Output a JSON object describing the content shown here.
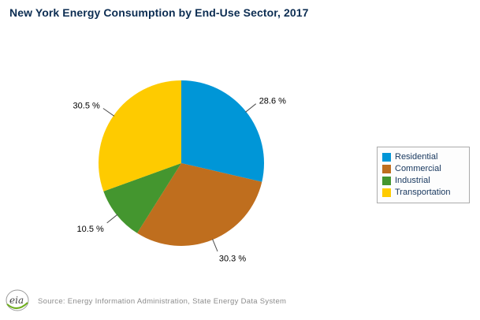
{
  "title": "New York Energy Consumption by End-Use Sector, 2017",
  "source": "Source: Energy Information Administration, State Energy Data System",
  "logo_text": "eia",
  "chart_data": {
    "type": "pie",
    "title": "New York Energy Consumption by End-Use Sector, 2017",
    "labels": [
      "Residential",
      "Commercial",
      "Industrial",
      "Transportation"
    ],
    "values": [
      28.6,
      30.3,
      10.5,
      30.5
    ],
    "value_labels": [
      "28.6 %",
      "30.3 %",
      "10.5 %",
      "30.5 %"
    ],
    "colors": [
      "#0096d7",
      "#bf6e1e",
      "#44962f",
      "#fecb00"
    ],
    "start_angle_deg": -90,
    "direction": "clockwise",
    "legend_position": "right",
    "legend_entries": [
      "Residential",
      "Commercial",
      "Industrial",
      "Transportation"
    ]
  }
}
